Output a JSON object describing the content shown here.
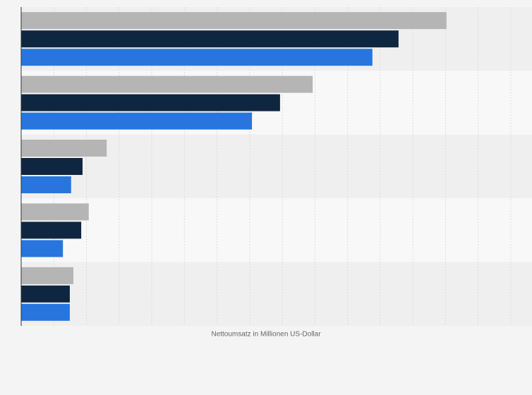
{
  "chart_data": {
    "type": "hbar",
    "x_label": "Nettoumsatz in Millionen US-Dollar",
    "categories": [
      null,
      null,
      null,
      null,
      null
    ],
    "series": [
      {
        "color": "#b5b5b5",
        "values": [
          13.03,
          8.93,
          2.62,
          2.07,
          1.6
        ]
      },
      {
        "color": "#0f2640",
        "values": [
          11.56,
          7.93,
          1.88,
          1.84,
          1.49
        ]
      },
      {
        "color": "#2876dd",
        "values": [
          10.76,
          7.07,
          1.53,
          1.28,
          1.49
        ]
      }
    ],
    "xlim": [
      0,
      15
    ],
    "xticks": [
      0,
      1,
      2,
      3,
      4,
      5,
      6,
      7,
      8,
      9,
      10,
      11,
      12,
      13,
      14,
      15
    ],
    "grid": true
  }
}
